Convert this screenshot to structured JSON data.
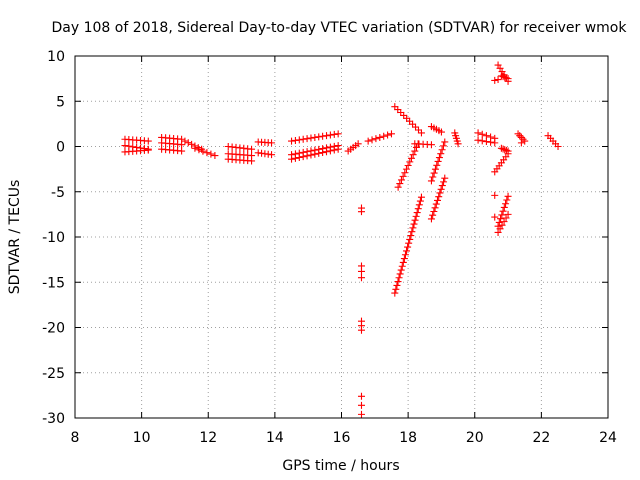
{
  "chart_data": {
    "type": "scatter",
    "title": "Day 108 of 2018, Sidereal Day-to-day VTEC variation (SDTVAR) for receiver wmok",
    "xlabel": "GPS time / hours",
    "ylabel": "SDTVAR / TECUs",
    "xlim": [
      8,
      24
    ],
    "ylim": [
      -30,
      10
    ],
    "xticks": [
      "8",
      "10",
      "12",
      "14",
      "16",
      "18",
      "20",
      "22",
      "24"
    ],
    "yticks": [
      "10",
      "5",
      "0",
      "-5",
      "-10",
      "-15",
      "-20",
      "-25",
      "-30"
    ],
    "grid": true,
    "marker": "plus",
    "color": "#ff0000",
    "segments": [
      {
        "x0": 9.5,
        "x1": 10.2,
        "y0": 0.8,
        "y1": 0.6
      },
      {
        "x0": 9.5,
        "x1": 10.2,
        "y0": 0.1,
        "y1": -0.3
      },
      {
        "x0": 9.5,
        "x1": 10.2,
        "y0": -0.6,
        "y1": -0.4
      },
      {
        "x0": 10.6,
        "x1": 11.2,
        "y0": 1.0,
        "y1": 0.8
      },
      {
        "x0": 10.6,
        "x1": 11.2,
        "y0": 0.4,
        "y1": 0.2
      },
      {
        "x0": 10.6,
        "x1": 11.2,
        "y0": -0.3,
        "y1": -0.5
      },
      {
        "x0": 11.3,
        "x1": 11.8,
        "y0": 0.6,
        "y1": -0.3
      },
      {
        "x0": 11.6,
        "x1": 12.2,
        "y0": -0.2,
        "y1": -1.0
      },
      {
        "x0": 12.6,
        "x1": 13.3,
        "y0": 0.0,
        "y1": -0.3
      },
      {
        "x0": 12.6,
        "x1": 13.3,
        "y0": -0.8,
        "y1": -1.0
      },
      {
        "x0": 12.6,
        "x1": 13.3,
        "y0": -1.4,
        "y1": -1.6
      },
      {
        "x0": 13.5,
        "x1": 13.9,
        "y0": 0.5,
        "y1": 0.4
      },
      {
        "x0": 13.5,
        "x1": 13.9,
        "y0": -0.7,
        "y1": -0.9
      },
      {
        "x0": 14.5,
        "x1": 15.9,
        "y0": 0.6,
        "y1": 1.4
      },
      {
        "x0": 14.5,
        "x1": 15.9,
        "y0": -1.4,
        "y1": -0.3
      },
      {
        "x0": 14.5,
        "x1": 15.9,
        "y0": -0.9,
        "y1": 0.1
      },
      {
        "x0": 16.2,
        "x1": 16.5,
        "y0": -0.5,
        "y1": 0.3
      },
      {
        "x0": 16.8,
        "x1": 17.5,
        "y0": 0.6,
        "y1": 1.4
      },
      {
        "x0": 17.6,
        "x1": 18.4,
        "y0": 4.4,
        "y1": 1.5
      },
      {
        "x0": 17.7,
        "x1": 18.3,
        "y0": -4.5,
        "y1": 0.3
      },
      {
        "x0": 17.6,
        "x1": 18.4,
        "y0": -16.2,
        "y1": -5.6
      },
      {
        "x0": 18.2,
        "x1": 18.7,
        "y0": 0.3,
        "y1": 0.2
      },
      {
        "x0": 18.7,
        "x1": 19.0,
        "y0": 2.2,
        "y1": 1.6
      },
      {
        "x0": 18.7,
        "x1": 19.1,
        "y0": -3.8,
        "y1": 0.5
      },
      {
        "x0": 18.7,
        "x1": 19.1,
        "y0": -8.0,
        "y1": -3.5
      },
      {
        "x0": 19.4,
        "x1": 19.5,
        "y0": 1.5,
        "y1": 0.3
      },
      {
        "x0": 20.1,
        "x1": 20.6,
        "y0": 1.5,
        "y1": 0.9
      },
      {
        "x0": 20.1,
        "x1": 20.6,
        "y0": 0.7,
        "y1": 0.4
      },
      {
        "x0": 20.7,
        "x1": 21.0,
        "y0": 9.0,
        "y1": 7.2
      },
      {
        "x0": 20.8,
        "x1": 21.0,
        "y0": 7.8,
        "y1": 7.5
      },
      {
        "x0": 20.8,
        "x1": 21.0,
        "y0": -0.2,
        "y1": -0.5
      },
      {
        "x0": 20.6,
        "x1": 21.0,
        "y0": -2.8,
        "y1": -0.8
      },
      {
        "x0": 20.7,
        "x1": 21.0,
        "y0": -8.8,
        "y1": -5.5
      },
      {
        "x0": 20.7,
        "x1": 21.0,
        "y0": -9.5,
        "y1": -7.5
      },
      {
        "x0": 21.3,
        "x1": 21.5,
        "y0": 1.4,
        "y1": 0.6
      },
      {
        "x0": 22.2,
        "x1": 22.5,
        "y0": 1.2,
        "y1": 0.0
      }
    ],
    "points": [
      [
        16.6,
        -6.8
      ],
      [
        16.6,
        -7.2
      ],
      [
        16.6,
        -13.2
      ],
      [
        16.6,
        -13.8
      ],
      [
        16.6,
        -14.5
      ],
      [
        16.6,
        -19.3
      ],
      [
        16.6,
        -19.8
      ],
      [
        16.6,
        -20.3
      ],
      [
        16.6,
        -27.6
      ],
      [
        16.6,
        -28.6
      ],
      [
        16.6,
        -29.6
      ],
      [
        20.6,
        7.3
      ],
      [
        20.7,
        7.4
      ],
      [
        20.6,
        -5.4
      ],
      [
        20.6,
        -7.8
      ],
      [
        21.4,
        0.4
      ]
    ]
  }
}
